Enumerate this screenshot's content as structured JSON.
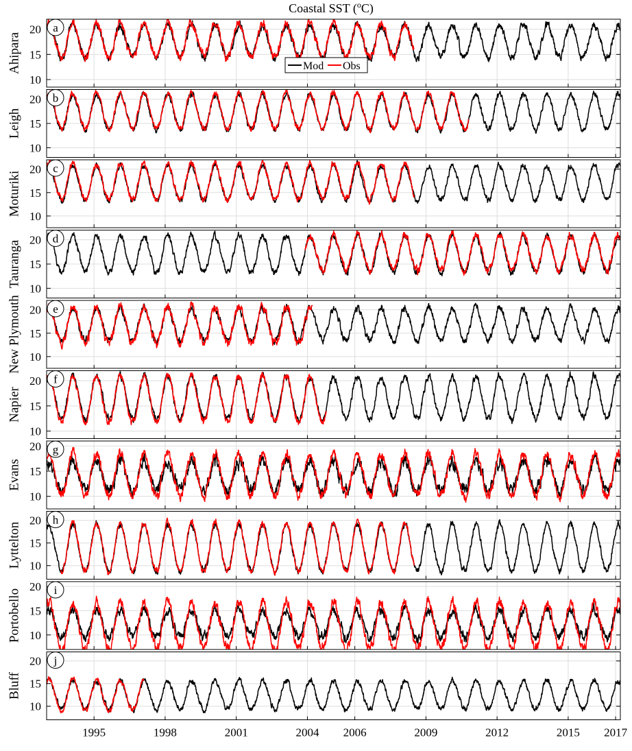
{
  "chart_data": {
    "type": "line",
    "title": "Coastal SST (",
    "title_sup": "o",
    "title_tail": "C)",
    "xlim": [
      1993.0,
      2017.2
    ],
    "x_ticks": [
      "1995",
      "1998",
      "2001",
      "2004",
      "2006",
      "2009",
      "2012",
      "2015",
      "2017"
    ],
    "x_tick_values": [
      1995,
      1998,
      2001,
      2004,
      2006,
      2009,
      2012,
      2015,
      2017
    ],
    "grid": true,
    "legend": {
      "placement": "inside-panel-a-bottom-center",
      "entries": [
        {
          "name": "Mod",
          "color": "#000000"
        },
        {
          "name": "Obs",
          "color": "#ff0000"
        }
      ]
    },
    "colors": {
      "model": "#000000",
      "observed": "#ff0000",
      "grid": "#dddddd"
    },
    "panels": [
      {
        "letter": "a",
        "site": "Ahipara",
        "ylim": [
          8.5,
          22
        ],
        "y_ticks": [
          10,
          15,
          20
        ],
        "mod": {
          "mean": 17.6,
          "amp": 3.2,
          "noise": 0.55,
          "start": 1993.0,
          "end": 2017.2
        },
        "obs": {
          "mean": 17.8,
          "amp": 3.4,
          "noise": 0.6,
          "start": 1993.0,
          "end": 2008.5
        }
      },
      {
        "letter": "b",
        "site": "Leigh",
        "ylim": [
          8,
          22
        ],
        "y_ticks": [
          10,
          15,
          20
        ],
        "mod": {
          "mean": 17.3,
          "amp": 3.7,
          "noise": 0.45,
          "start": 1993.0,
          "end": 2017.2
        },
        "obs": {
          "mean": 17.5,
          "amp": 3.7,
          "noise": 0.45,
          "start": 1993.0,
          "end": 2010.8
        }
      },
      {
        "letter": "c",
        "site": "Moturiki",
        "ylim": [
          7.5,
          22
        ],
        "y_ticks": [
          10,
          15,
          20
        ],
        "mod": {
          "mean": 17.0,
          "amp": 3.7,
          "noise": 0.45,
          "start": 1993.0,
          "end": 2017.2
        },
        "obs": {
          "mean": 17.3,
          "amp": 3.8,
          "noise": 0.5,
          "start": 1993.0,
          "end": 2008.5
        }
      },
      {
        "letter": "d",
        "site": "Tauranga",
        "ylim": [
          8,
          22
        ],
        "y_ticks": [
          10,
          15,
          20
        ],
        "mod": {
          "mean": 17.0,
          "amp": 3.8,
          "noise": 0.5,
          "start": 1993.0,
          "end": 2017.2
        },
        "obs": {
          "mean": 17.3,
          "amp": 3.7,
          "noise": 0.55,
          "start": 2003.9,
          "end": 2017.2
        }
      },
      {
        "letter": "e",
        "site": "New Plymouth",
        "ylim": [
          7.5,
          22
        ],
        "y_ticks": [
          10,
          15,
          20
        ],
        "mod": {
          "mean": 16.8,
          "amp": 3.5,
          "noise": 0.55,
          "start": 1993.0,
          "end": 2017.2
        },
        "obs": {
          "mean": 16.6,
          "amp": 3.9,
          "noise": 0.7,
          "start": 1993.0,
          "end": 2004.2
        }
      },
      {
        "letter": "f",
        "site": "Napier",
        "ylim": [
          8.5,
          22
        ],
        "y_ticks": [
          10,
          15,
          20
        ],
        "mod": {
          "mean": 16.6,
          "amp": 4.3,
          "noise": 0.5,
          "start": 1993.0,
          "end": 2017.2
        },
        "obs": {
          "mean": 16.3,
          "amp": 4.6,
          "noise": 0.5,
          "start": 1993.0,
          "end": 2004.8
        }
      },
      {
        "letter": "g",
        "site": "Evans",
        "ylim": [
          7.5,
          21
        ],
        "y_ticks": [
          10,
          15,
          20
        ],
        "mod": {
          "mean": 14.0,
          "amp": 3.0,
          "noise": 0.9,
          "start": 1993.0,
          "end": 2017.2
        },
        "obs": {
          "mean": 14.2,
          "amp": 4.2,
          "noise": 0.7,
          "start": 1993.0,
          "end": 2017.2
        }
      },
      {
        "letter": "h",
        "site": "Lyttelton",
        "ylim": [
          7,
          22
        ],
        "y_ticks": [
          10,
          15,
          20
        ],
        "mod": {
          "mean": 13.8,
          "amp": 5.2,
          "noise": 0.5,
          "start": 1993.0,
          "end": 2017.2
        },
        "obs": {
          "mean": 14.0,
          "amp": 5.4,
          "noise": 0.5,
          "start": 1993.6,
          "end": 2008.5
        }
      },
      {
        "letter": "i",
        "site": "Portobello",
        "ylim": [
          7,
          21
        ],
        "y_ticks": [
          10,
          15,
          20
        ],
        "mod": {
          "mean": 12.3,
          "amp": 2.8,
          "noise": 0.7,
          "start": 1993.0,
          "end": 2017.2
        },
        "obs": {
          "mean": 11.8,
          "amp": 4.8,
          "noise": 0.8,
          "start": 1993.0,
          "end": 2017.2
        }
      },
      {
        "letter": "j",
        "site": "Bluff",
        "ylim": [
          7,
          22
        ],
        "y_ticks": [
          10,
          15,
          20
        ],
        "mod": {
          "mean": 12.4,
          "amp": 3.2,
          "noise": 0.45,
          "start": 1993.0,
          "end": 2017.2
        },
        "obs": {
          "mean": 12.4,
          "amp": 3.4,
          "noise": 0.45,
          "start": 1993.0,
          "end": 1997.1
        }
      }
    ]
  }
}
